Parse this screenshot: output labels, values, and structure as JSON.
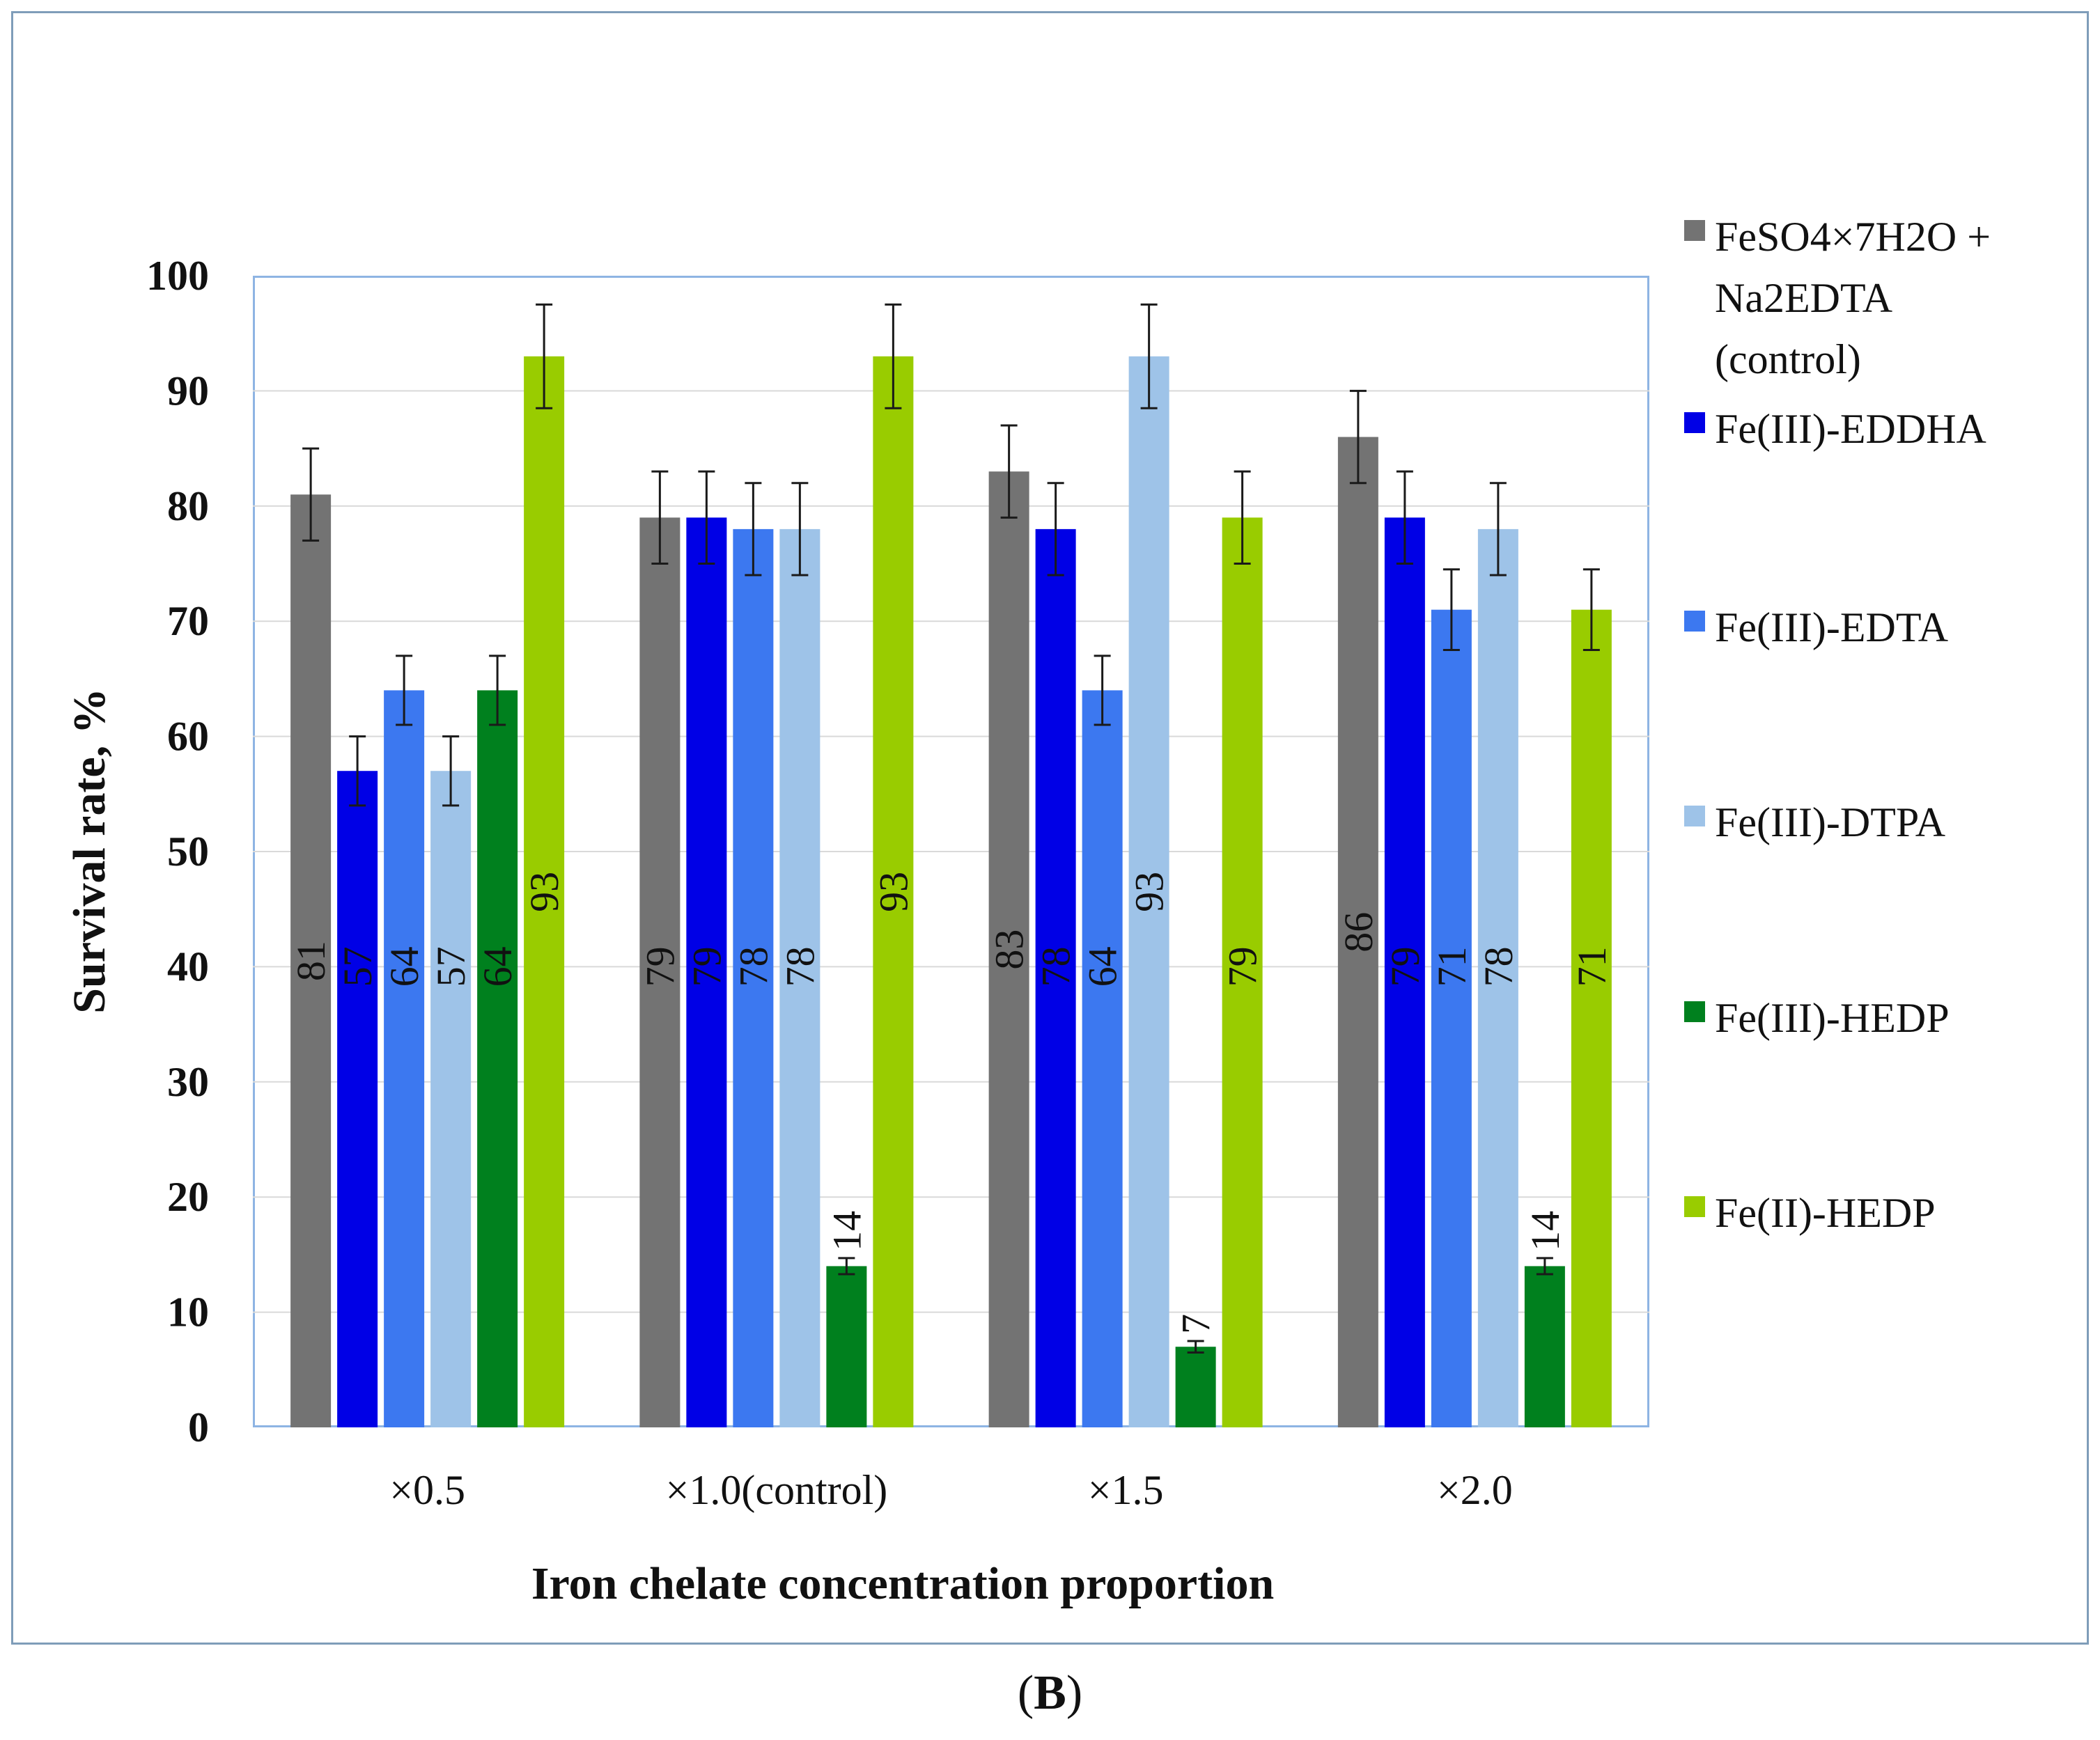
{
  "chart_data": {
    "type": "bar",
    "title": "",
    "xlabel": "Iron chelate concentration proportion",
    "ylabel": "Survival rate, %",
    "ylim": [
      0,
      100
    ],
    "yticks": [
      0,
      10,
      20,
      30,
      40,
      50,
      60,
      70,
      80,
      90,
      100
    ],
    "categories": [
      "×0.5",
      "×1.0(control)",
      "×1.5",
      "×2.0"
    ],
    "grid": true,
    "legend_position": "right",
    "series": [
      {
        "name": "FeSO4×7H2O + Na2EDTA (control)",
        "color": "#737373",
        "values": [
          81,
          79,
          83,
          86
        ],
        "errors": [
          4,
          4,
          4,
          4
        ]
      },
      {
        "name": "Fe(III)-EDDHA",
        "color": "#0000e6",
        "values": [
          57,
          79,
          78,
          79
        ],
        "errors": [
          3,
          4,
          4,
          4
        ]
      },
      {
        "name": "Fe(III)-EDTA",
        "color": "#3c78f0",
        "values": [
          64,
          78,
          64,
          71
        ],
        "errors": [
          3,
          4,
          3,
          3.5
        ]
      },
      {
        "name": "Fe(III)-DTPA",
        "color": "#9ec3e8",
        "values": [
          57,
          78,
          93,
          78
        ],
        "errors": [
          3,
          4,
          4.5,
          4
        ]
      },
      {
        "name": "Fe(III)-HEDP",
        "color": "#00801e",
        "values": [
          64,
          14,
          7,
          14
        ],
        "errors": [
          3,
          0.7,
          0.5,
          0.7
        ]
      },
      {
        "name": "Fe(II)-HEDP",
        "color": "#99cc00",
        "values": [
          93,
          93,
          79,
          71
        ],
        "errors": [
          4.5,
          4.5,
          4,
          3.5
        ]
      }
    ]
  },
  "caption": {
    "open": "(",
    "letter": "B",
    "close": ")"
  }
}
